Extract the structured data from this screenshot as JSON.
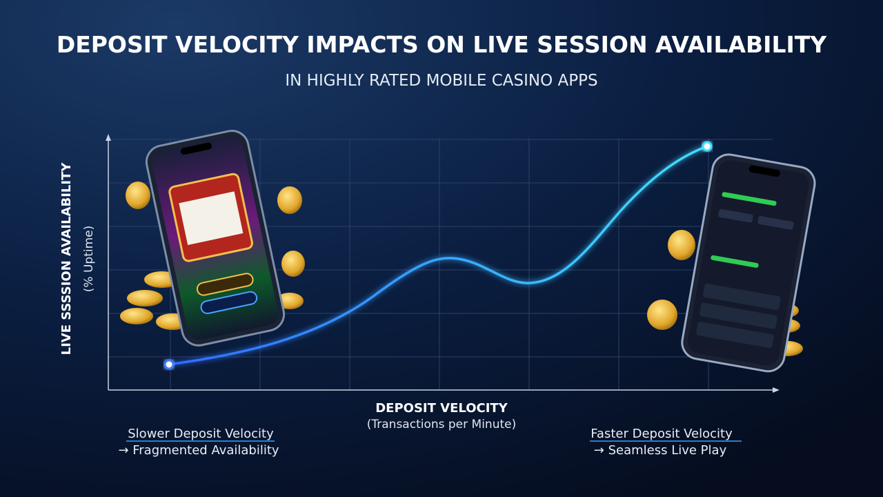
{
  "chart_data": {
    "type": "line",
    "title": "DEPOSIT VELOCITY IMPACTS ON LIVE SESSION AVAILABILITY",
    "subtitle": "IN HIGHLY RATED MOBILE CASINO APPS",
    "y_label": "LIVE SSSSION AVAILABILITY",
    "y_sublabel": "(% Uptime)",
    "x_label": "DEPOSIT VELOCITY",
    "x_sublabel": "(Transactions per Minute)",
    "annotations": {
      "left": [
        "Slower Deposit Velocity",
        "→ Fragmented Availability"
      ],
      "right": [
        "Faster Deposit Velocity",
        "→ Seamless Live Play"
      ]
    },
    "grid": true
  }
}
